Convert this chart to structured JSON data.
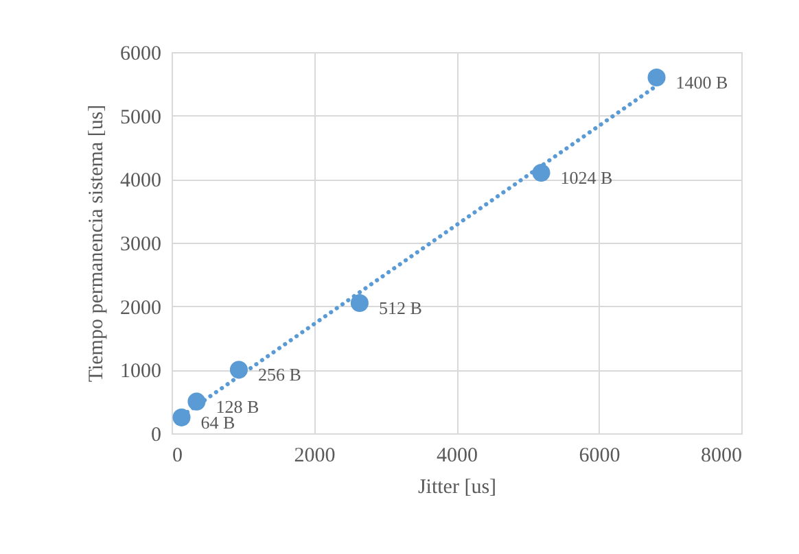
{
  "chart_data": {
    "type": "scatter",
    "xlabel": "Jitter [us]",
    "ylabel": "Tiempo permanencia sistema [us]",
    "xlim": [
      0,
      8000
    ],
    "xticks": [
      0,
      2000,
      4000,
      6000,
      8000
    ],
    "ylim": [
      0,
      6000
    ],
    "yticks": [
      0,
      1000,
      2000,
      3000,
      4000,
      5000,
      6000
    ],
    "grid": true,
    "series": [
      {
        "color": "#5b9bd5",
        "marker": "circle",
        "x": [
          140,
          351,
          944,
          2640,
          5190,
          6810
        ],
        "values": [
          250,
          500,
          1000,
          2050,
          4100,
          5600
        ]
      },
      {
        "type": "line",
        "color": "#5b9bd5",
        "line_style": "dotted",
        "x": [
          140,
          6810
        ],
        "values": [
          270,
          5470
        ]
      }
    ],
    "annotations": [
      {
        "text": "64 B",
        "x": 140,
        "y": 250
      },
      {
        "text": "128 B",
        "x": 351,
        "y": 500
      },
      {
        "text": "256 B",
        "x": 944,
        "y": 1000
      },
      {
        "text": "512 B",
        "x": 2640,
        "y": 2050
      },
      {
        "text": "1024 B",
        "x": 5190,
        "y": 4100
      },
      {
        "text": "1400 B",
        "x": 6810,
        "y": 5600
      }
    ]
  }
}
